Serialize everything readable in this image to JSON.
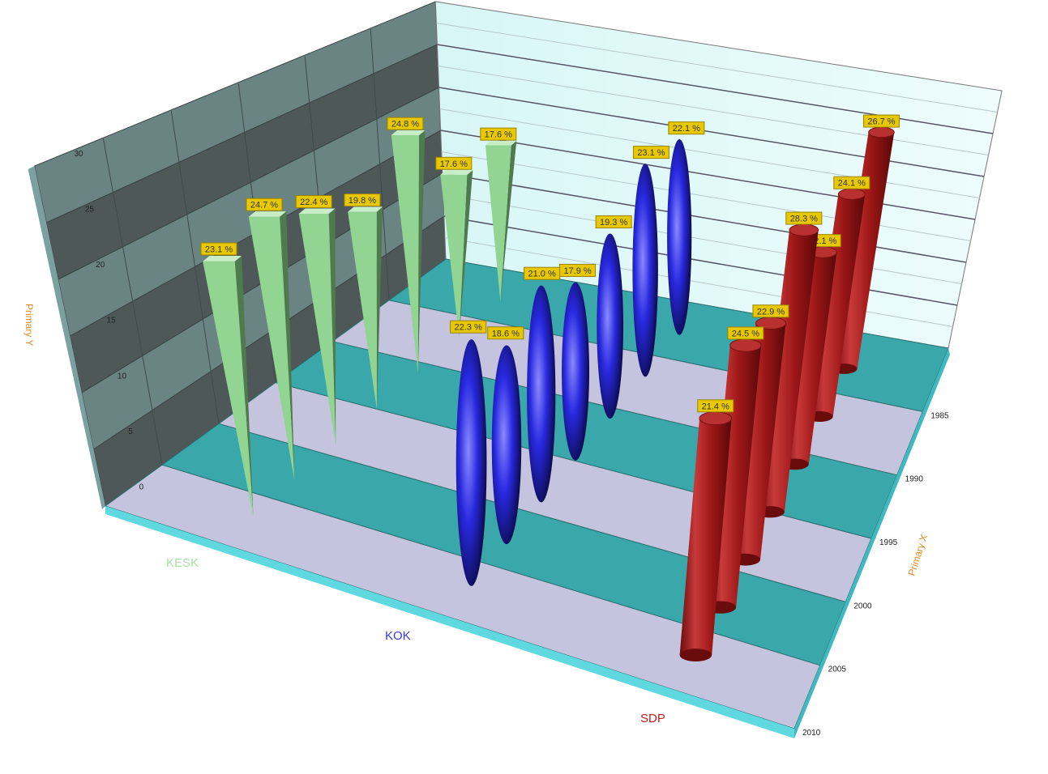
{
  "chart_data": {
    "type": "bar",
    "variant": "3d",
    "xlabel": "Primary X",
    "ylabel": "Primary Y",
    "ylim": [
      0,
      30
    ],
    "yticks": [
      "0",
      "5",
      "10",
      "15",
      "20",
      "25",
      "30"
    ],
    "xlim": [
      1980,
      2010
    ],
    "xticks": [
      "1985",
      "1990",
      "1995",
      "2000",
      "2005",
      "2010"
    ],
    "x": [
      1983,
      1987,
      1991,
      1995,
      1999,
      2003,
      2007
    ],
    "grid": true,
    "series": [
      {
        "name": "KESK",
        "shape": "inverted-pyramid",
        "color": "#8fd18f",
        "values": [
          17.6,
          17.6,
          24.8,
          19.8,
          22.4,
          24.7,
          23.1
        ],
        "labels": [
          "17.6 %",
          "17.6 %",
          "24.8 %",
          "19.8 %",
          "22.4 %",
          "24.7 %",
          "23.1 %"
        ]
      },
      {
        "name": "KOK",
        "shape": "ellipsoid",
        "color": "#2a2ae0",
        "values": [
          22.1,
          23.1,
          19.3,
          17.9,
          21.0,
          18.6,
          22.3
        ],
        "labels": [
          "22.1 %",
          "23.1 %",
          "19.3 %",
          "17.9 %",
          "21.0 %",
          "18.6 %",
          "22.3 %"
        ]
      },
      {
        "name": "SDP",
        "shape": "cylinder",
        "color": "#a01818",
        "values": [
          26.7,
          24.1,
          22.1,
          28.3,
          22.9,
          24.5,
          21.4
        ],
        "labels": [
          "26.7 %",
          "24.1 %",
          "22.1 %",
          "28.3 %",
          "22.9 %",
          "24.5 %",
          "21.4 %"
        ]
      }
    ],
    "category_label_colors": [
      "#a8e0a8",
      "#3a3ad8",
      "#c02020"
    ]
  }
}
